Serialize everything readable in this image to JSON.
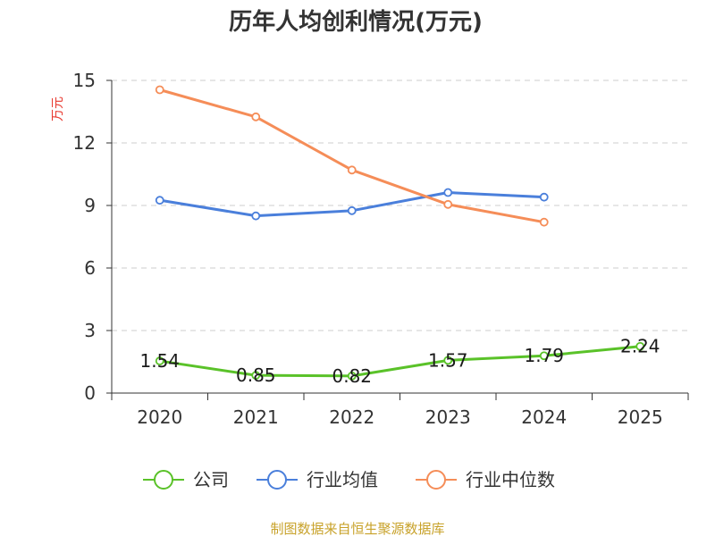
{
  "chart_data": {
    "type": "line",
    "title": "历年人均创利情况(万元)",
    "ylabel": "万元",
    "xlabel": "",
    "categories": [
      "2020",
      "2021",
      "2022",
      "2023",
      "2024",
      "2025"
    ],
    "ylim": [
      0,
      15
    ],
    "yticks": [
      0,
      3,
      6,
      9,
      12,
      15
    ],
    "grid": "horizontal-dashed",
    "legend_position": "bottom",
    "series": [
      {
        "name": "公司",
        "color": "#5ac229",
        "values": [
          1.54,
          0.85,
          0.82,
          1.57,
          1.79,
          2.24
        ],
        "labels": [
          "1.54",
          "0.85",
          "0.82",
          "1.57",
          "1.79",
          "2.24"
        ]
      },
      {
        "name": "行业均值",
        "color": "#4a7fdb",
        "values": [
          9.25,
          8.5,
          8.75,
          9.62,
          9.4,
          null
        ]
      },
      {
        "name": "行业中位数",
        "color": "#f58d58",
        "values": [
          14.55,
          13.25,
          10.7,
          9.05,
          8.2,
          null
        ]
      }
    ]
  },
  "source": "制图数据来自恒生聚源数据库"
}
